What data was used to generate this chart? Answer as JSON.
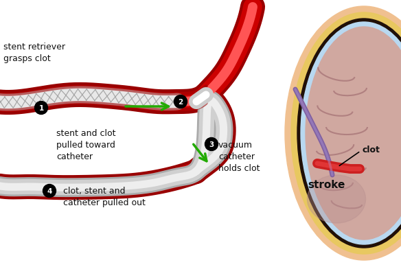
{
  "bg_color": "#ffffff",
  "labels": {
    "step1": "stent retriever\ngrasps clot",
    "step2": "stent and clot\npulled toward\ncatheter",
    "step3": "vacuum\ncatheter\nholds clot",
    "step4": "clot, stent and\ncatheter pulled out"
  },
  "brain_labels": {
    "clot": "clot",
    "stroke": "stroke"
  },
  "vessel_red": "#cc0000",
  "vessel_red_dark": "#990000",
  "vessel_highlight": "#ff5555",
  "catheter_outer": "#aaaaaa",
  "catheter_mid": "#d0d0d0",
  "catheter_inner": "#eeeeee",
  "stent_fill": "#e8e8e8",
  "stent_mesh": "#999999",
  "arrow_green": "#22aa00",
  "circle_black": "#111111",
  "text_black": "#111111",
  "skin_color": "#f0c090",
  "skull_yellow": "#e8c860",
  "skull_dark": "#201008",
  "csf_blue": "#b8d8f0",
  "brain_color": "#d0a8a0",
  "brain_fold": "#b08080",
  "brain_stroke": "#c09090",
  "purple_cath": "#8060a0",
  "red_vessel_brain": "#cc2020"
}
